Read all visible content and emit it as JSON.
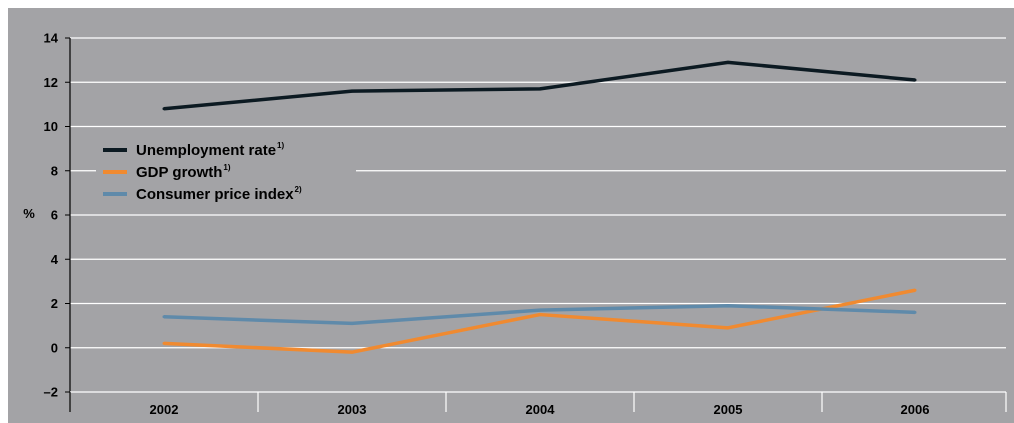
{
  "chart_data": {
    "type": "line",
    "categories": [
      "2002",
      "2003",
      "2004",
      "2005",
      "2006"
    ],
    "series": [
      {
        "name": "Unemployment rate",
        "note": "1)",
        "color": "#0c1a22",
        "values": [
          10.8,
          11.6,
          11.7,
          12.9,
          12.1
        ]
      },
      {
        "name": "GDP growth",
        "note": "1)",
        "color": "#f08a30",
        "values": [
          0.2,
          -0.2,
          1.5,
          0.9,
          2.6
        ]
      },
      {
        "name": "Consumer price index",
        "note": "2)",
        "color": "#5f8aaa",
        "values": [
          1.4,
          1.1,
          1.7,
          1.9,
          1.6
        ]
      }
    ],
    "ylabel": "%",
    "ylim": [
      -2,
      14
    ],
    "yticks": [
      -2,
      0,
      2,
      4,
      6,
      8,
      10,
      12,
      14
    ],
    "ytick_labels": [
      "–2",
      "0",
      "2",
      "4",
      "6",
      "8",
      "10",
      "12",
      "14"
    ],
    "grid": true,
    "legend_position": "left",
    "background_color": "#a3a3a6",
    "grid_color": "#ffffff"
  }
}
